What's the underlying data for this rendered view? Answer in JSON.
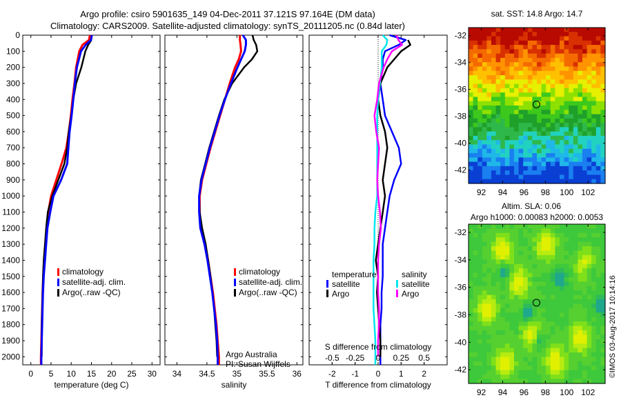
{
  "header": {
    "title_line1": "Argo profile: csiro 5901635_149 04-Dec-2011 37.121S 97.164E (DM data)",
    "title_line2": "Climatology: CARS2009. Satellite-adjusted climatology: synTS_20111205.nc (0.84d later)"
  },
  "footer": {
    "credit": "©IMOS 03-Aug-2017 10:14:16"
  },
  "colors": {
    "climatology": "#ff0000",
    "satellite": "#0000ff",
    "argo": "#000000",
    "sal_satellite": "#00e5ee",
    "sal_argo": "#ff00ff"
  },
  "chart_data": [
    {
      "type": "line",
      "name": "temperature-profile",
      "xlabel": "temperature (deg C)",
      "ylabel": "",
      "xlim": [
        -2,
        32
      ],
      "ylim": [
        2050,
        0
      ],
      "xticks": [
        0,
        5,
        10,
        15,
        20,
        25,
        30
      ],
      "yticks": [
        0,
        100,
        200,
        300,
        400,
        500,
        600,
        700,
        800,
        900,
        1000,
        1100,
        1200,
        1300,
        1400,
        1500,
        1600,
        1700,
        1800,
        1900,
        2000
      ],
      "legend": [
        "climatology",
        "satellite-adj. clim.",
        "Argo(..raw -QC)"
      ],
      "legend_position": "lower-middle",
      "depth": [
        0,
        30,
        60,
        100,
        150,
        200,
        300,
        400,
        500,
        600,
        700,
        800,
        900,
        1000,
        1100,
        1200,
        1300,
        1400,
        1500,
        1600,
        1700,
        1800,
        1900,
        2000,
        2050
      ],
      "series": [
        {
          "name": "climatology",
          "values": [
            14.6,
            14.4,
            12.8,
            12.0,
            11.6,
            11.2,
            10.8,
            10.3,
            9.9,
            9.4,
            8.8,
            7.6,
            6.3,
            5.0,
            4.3,
            4.0,
            3.6,
            3.3,
            3.1,
            2.9,
            2.8,
            2.7,
            2.6,
            2.5,
            2.5
          ]
        },
        {
          "name": "satellite-adj. clim.",
          "values": [
            15.1,
            14.9,
            13.6,
            12.4,
            11.9,
            11.4,
            10.9,
            10.5,
            10.1,
            9.6,
            9.3,
            9.0,
            7.5,
            5.6,
            4.8,
            4.1,
            3.8,
            3.5,
            3.2,
            3.0,
            2.9,
            2.8,
            2.7,
            2.6,
            2.6
          ]
        },
        {
          "name": "Argo(..raw -QC)",
          "values": [
            null,
            15.0,
            14.2,
            13.5,
            13.0,
            12.5,
            11.2,
            10.5,
            10.0,
            9.4,
            9.0,
            8.3,
            6.8,
            5.3,
            4.2,
            3.8,
            3.5,
            3.2,
            3.0,
            2.9,
            2.8,
            2.7,
            2.7,
            2.7,
            null
          ]
        }
      ]
    },
    {
      "type": "line",
      "name": "salinity-profile",
      "xlabel": "salinity",
      "xlim": [
        33.8,
        36.1
      ],
      "ylim": [
        2050,
        0
      ],
      "xticks": [
        34,
        34.5,
        35,
        35.5,
        36
      ],
      "legend": [
        "climatology",
        "satellite-adj. clim.",
        "Argo(..raw -QC)"
      ],
      "legend_position": "lower-right",
      "annotation": [
        "Argo Australia",
        "PI: Susan Wijffels"
      ],
      "depth": [
        0,
        30,
        60,
        100,
        150,
        200,
        300,
        400,
        500,
        600,
        700,
        800,
        900,
        1000,
        1100,
        1200,
        1300,
        1400,
        1500,
        1600,
        1700,
        1800,
        1900,
        2000,
        2050
      ],
      "series": [
        {
          "name": "climatology",
          "values": [
            35.05,
            35.05,
            35.06,
            35.07,
            35.03,
            34.97,
            34.88,
            34.8,
            34.72,
            34.64,
            34.56,
            34.49,
            34.42,
            34.38,
            34.38,
            34.4,
            34.47,
            34.52,
            34.56,
            34.6,
            34.63,
            34.66,
            34.68,
            34.7,
            34.7
          ]
        },
        {
          "name": "satellite-adj. clim.",
          "values": [
            35.1,
            35.15,
            35.15,
            35.13,
            35.07,
            35.01,
            34.9,
            34.8,
            34.71,
            34.63,
            34.55,
            34.48,
            34.41,
            34.37,
            34.37,
            34.39,
            34.46,
            34.51,
            34.55,
            34.59,
            34.62,
            34.65,
            34.67,
            34.68,
            34.68
          ]
        },
        {
          "name": "Argo(..raw -QC)",
          "values": [
            35.26,
            35.28,
            35.32,
            35.34,
            35.25,
            35.12,
            34.92,
            34.79,
            34.7,
            34.62,
            34.54,
            34.47,
            34.4,
            34.37,
            34.38,
            34.42,
            34.48,
            34.52,
            34.56,
            34.59,
            34.62,
            34.64,
            34.66,
            34.67,
            null
          ]
        }
      ]
    },
    {
      "type": "line",
      "name": "difference-profile",
      "xlabel": "T difference from climatology",
      "x2label": "S difference from climatology",
      "xlim": [
        -3,
        3
      ],
      "x2lim": [
        -0.75,
        0.75
      ],
      "ylim": [
        2050,
        0
      ],
      "xticks": [
        -2,
        -1,
        0,
        1,
        2
      ],
      "x2ticks": [
        -0.5,
        -0.25,
        0,
        0.25,
        0.5
      ],
      "zero_line": true,
      "legend_groups": [
        {
          "title": "temperature",
          "items": [
            "satellite",
            "Argo"
          ]
        },
        {
          "title": "salinity",
          "items": [
            "satellite",
            "Argo"
          ]
        }
      ],
      "legend_position": "lower-middle",
      "depth": [
        0,
        30,
        60,
        100,
        150,
        200,
        300,
        400,
        500,
        600,
        700,
        800,
        900,
        1000,
        1100,
        1200,
        1300,
        1400,
        1500,
        1600,
        1700,
        1800,
        1900,
        2000,
        2050
      ],
      "series": [
        {
          "name": "temperature satellite",
          "axis": "T",
          "values": [
            0.5,
            1.2,
            0.9,
            0.3,
            0.2,
            0.2,
            0.1,
            0.2,
            0.3,
            0.6,
            0.9,
            1.0,
            0.7,
            0.5,
            0.4,
            0.3,
            0.2,
            0.2,
            0.2,
            0.15,
            0.15,
            0.1,
            0.1,
            0.1,
            0.1
          ]
        },
        {
          "name": "temperature Argo",
          "axis": "T",
          "values": [
            null,
            1.3,
            1.4,
            1.0,
            0.7,
            0.4,
            0.1,
            0.0,
            0.1,
            0.3,
            0.4,
            0.3,
            0.2,
            0.3,
            0.2,
            0.1,
            0.0,
            -0.1,
            0.0,
            -0.05,
            0.0,
            0.05,
            0.1,
            0.1,
            null
          ]
        },
        {
          "name": "salinity satellite",
          "axis": "S",
          "values": [
            0.05,
            0.1,
            0.09,
            0.04,
            0.04,
            0.04,
            0.02,
            0.0,
            -0.01,
            -0.01,
            -0.01,
            -0.01,
            -0.01,
            -0.01,
            -0.03,
            -0.04,
            -0.04,
            -0.05,
            -0.05,
            -0.05,
            -0.05,
            -0.04,
            -0.03,
            -0.03,
            -0.03
          ]
        },
        {
          "name": "salinity Argo",
          "axis": "S",
          "values": [
            0.2,
            0.22,
            0.26,
            0.15,
            0.1,
            0.06,
            0.01,
            -0.01,
            -0.04,
            -0.02,
            0.01,
            0.0,
            -0.01,
            0.0,
            0.02,
            0.03,
            0.01,
            0.0,
            0.0,
            0.0,
            0.01,
            0.01,
            0.0,
            0.0,
            null
          ]
        }
      ]
    },
    {
      "type": "heatmap",
      "name": "sst-map",
      "title": "sat. SST: 14.8 Argo: 14.7",
      "xlim": [
        90.8,
        103.6
      ],
      "ylim": [
        -43,
        -31.4
      ],
      "xticks": [
        92,
        94,
        96,
        98,
        100,
        102
      ],
      "yticks": [
        -32,
        -34,
        -36,
        -38,
        -40,
        -42
      ],
      "marker": {
        "lon": 97.164,
        "lat": -37.121
      },
      "description": "SST field: warm (red) in north, cooling through yellow, green to blue in south"
    },
    {
      "type": "heatmap",
      "name": "sla-map",
      "title_line1": "Altim. SLA: 0.06",
      "title_line2": "Argo h1000: 0.00083 h2000: 0.0053",
      "xlim": [
        90.8,
        103.6
      ],
      "ylim": [
        -43,
        -31.4
      ],
      "xticks": [
        92,
        94,
        96,
        98,
        100,
        102
      ],
      "yticks": [
        -32,
        -34,
        -36,
        -38,
        -40,
        -42
      ],
      "marker": {
        "lon": 97.164,
        "lat": -37.121
      },
      "description": "Sea level anomaly field, mostly green with yellow and teal eddies"
    }
  ]
}
